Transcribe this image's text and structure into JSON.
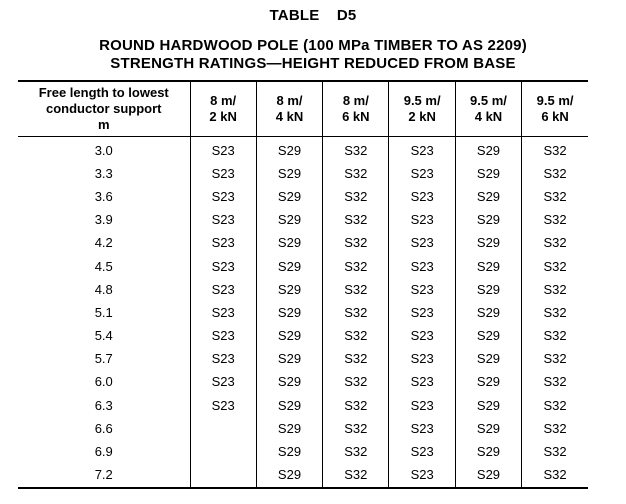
{
  "title": {
    "table_number": "TABLE    D5",
    "line1": "ROUND HARDWOOD POLE (100 MPa TIMBER TO AS 2209)",
    "line2": "STRENGTH RATINGS—HEIGHT REDUCED FROM BASE"
  },
  "table": {
    "headers": [
      "Free length to lowest conductor support\nm",
      "8 m/\n2 kN",
      "8 m/\n4 kN",
      "8 m/\n6 kN",
      "9.5 m/\n2 kN",
      "9.5 m/\n4 kN",
      "9.5 m/\n6 kN"
    ],
    "rows": [
      [
        "3.0",
        "S23",
        "S29",
        "S32",
        "S23",
        "S29",
        "S32"
      ],
      [
        "3.3",
        "S23",
        "S29",
        "S32",
        "S23",
        "S29",
        "S32"
      ],
      [
        "3.6",
        "S23",
        "S29",
        "S32",
        "S23",
        "S29",
        "S32"
      ],
      [
        "3.9",
        "S23",
        "S29",
        "S32",
        "S23",
        "S29",
        "S32"
      ],
      [
        "4.2",
        "S23",
        "S29",
        "S32",
        "S23",
        "S29",
        "S32"
      ],
      [
        "4.5",
        "S23",
        "S29",
        "S32",
        "S23",
        "S29",
        "S32"
      ],
      [
        "4.8",
        "S23",
        "S29",
        "S32",
        "S23",
        "S29",
        "S32"
      ],
      [
        "5.1",
        "S23",
        "S29",
        "S32",
        "S23",
        "S29",
        "S32"
      ],
      [
        "5.4",
        "S23",
        "S29",
        "S32",
        "S23",
        "S29",
        "S32"
      ],
      [
        "5.7",
        "S23",
        "S29",
        "S32",
        "S23",
        "S29",
        "S32"
      ],
      [
        "6.0",
        "S23",
        "S29",
        "S32",
        "S23",
        "S29",
        "S32"
      ],
      [
        "6.3",
        "S23",
        "S29",
        "S32",
        "S23",
        "S29",
        "S32"
      ],
      [
        "6.6",
        "",
        "S29",
        "S32",
        "S23",
        "S29",
        "S32"
      ],
      [
        "6.9",
        "",
        "S29",
        "S32",
        "S23",
        "S29",
        "S32"
      ],
      [
        "7.2",
        "",
        "S29",
        "S32",
        "S23",
        "S29",
        "S32"
      ]
    ]
  }
}
